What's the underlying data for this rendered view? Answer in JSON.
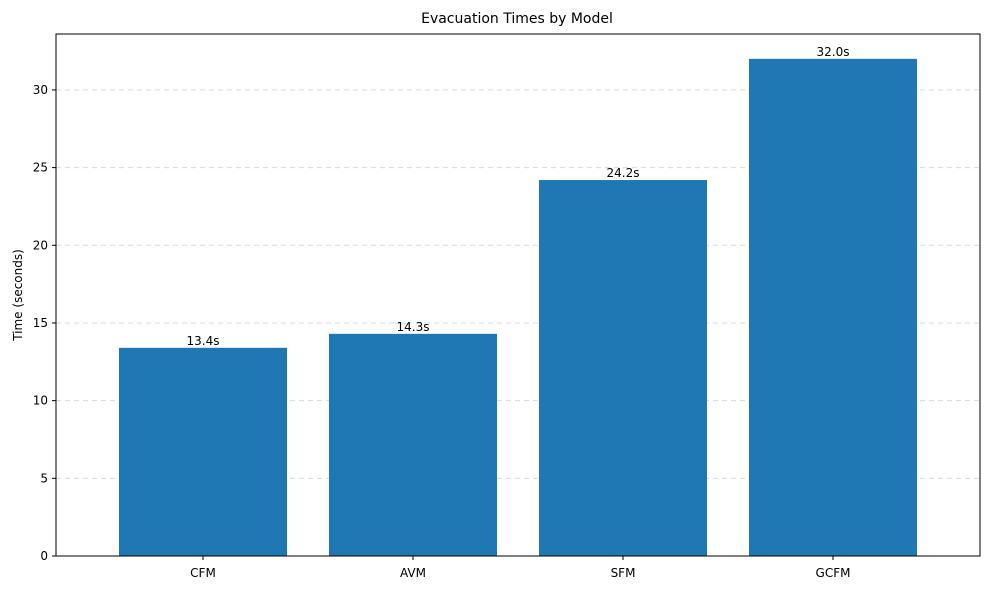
{
  "chart_data": {
    "type": "bar",
    "title": "Evacuation Times by Model",
    "xlabel": "",
    "ylabel": "Time (seconds)",
    "categories": [
      "CFM",
      "AVM",
      "SFM",
      "GCFM"
    ],
    "values": [
      13.4,
      14.3,
      24.2,
      32.0
    ],
    "value_labels": [
      "13.4s",
      "14.3s",
      "24.2s",
      "32.0s"
    ],
    "yticks": [
      0,
      5,
      10,
      15,
      20,
      25,
      30
    ],
    "ytick_labels": [
      "0",
      "5",
      "10",
      "15",
      "20",
      "25",
      "30"
    ],
    "ylim": [
      0,
      33.6
    ],
    "grid": "y-dashed",
    "bar_color": "#1f77b4",
    "grid_color": "#d9d9d9"
  }
}
